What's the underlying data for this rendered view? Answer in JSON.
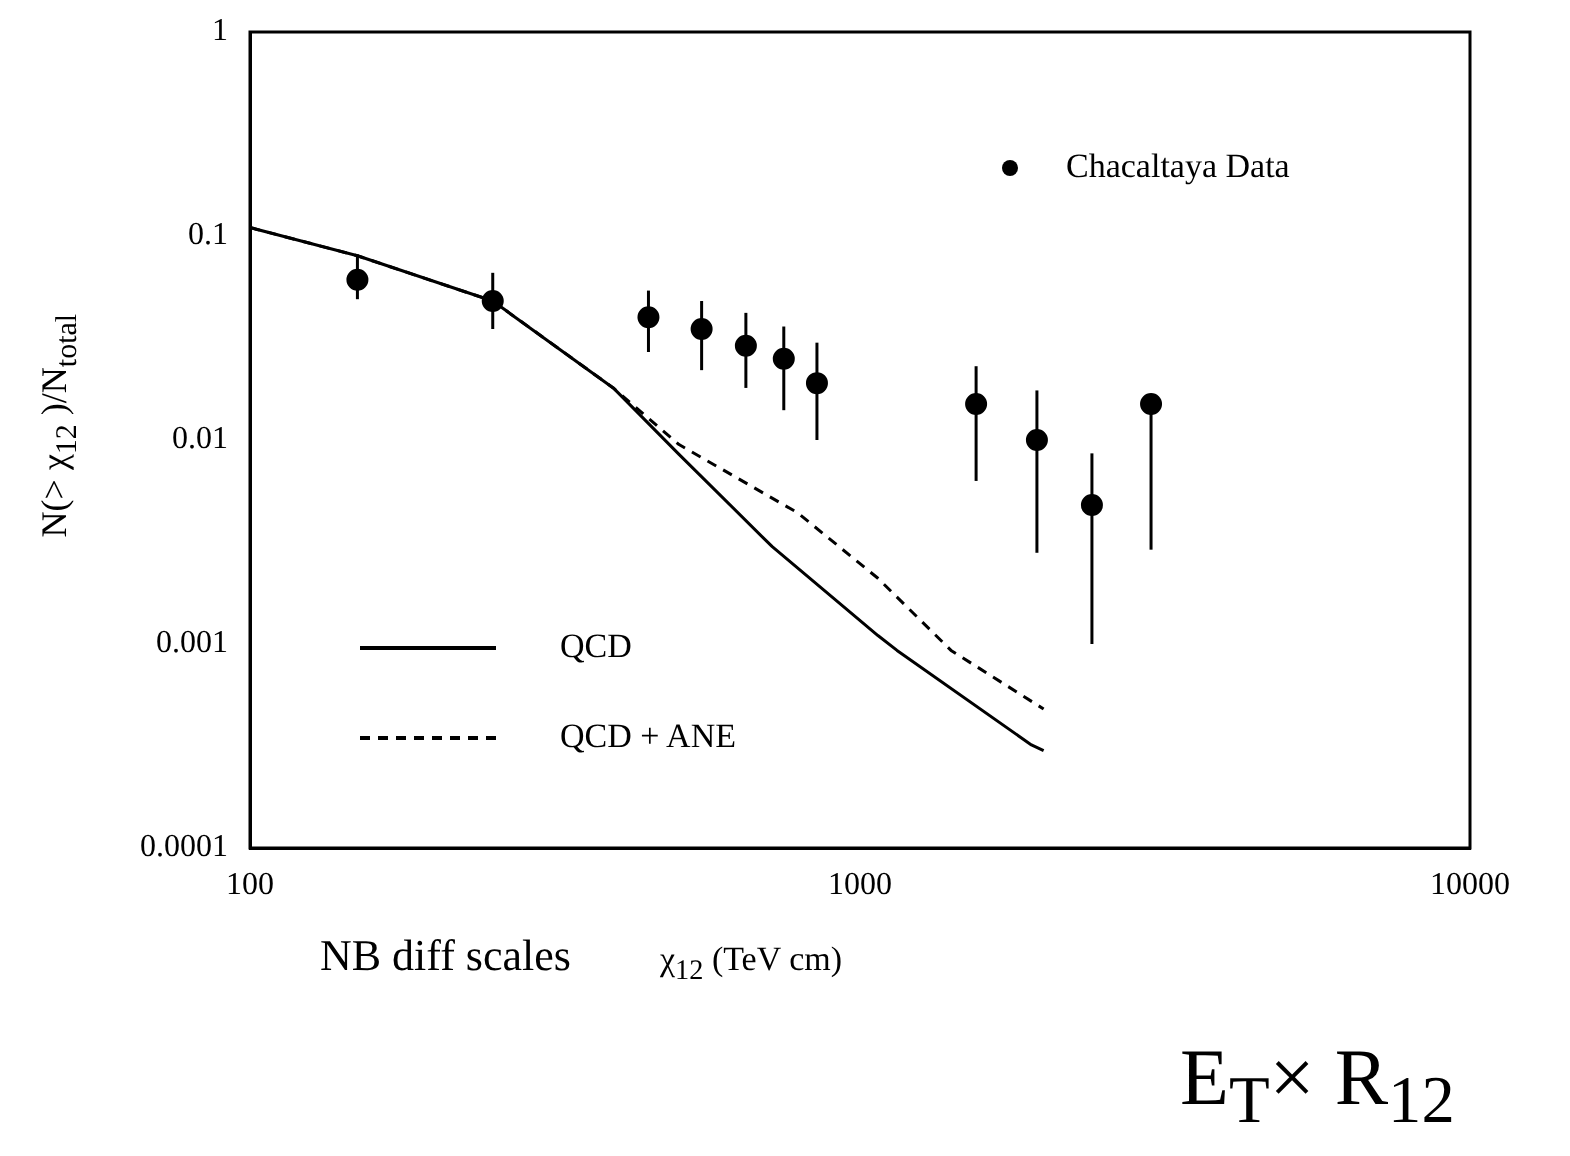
{
  "chart_data": {
    "type": "scatter",
    "xlabel": "χ$_{12}$ (TeV cm)",
    "ylabel": "N(> χ$_{12}$ )/N$_{total}$",
    "log": "xy",
    "xlim": [
      100,
      10000
    ],
    "xticks": [
      100,
      1000,
      10000
    ],
    "ylim": [
      0.0001,
      1
    ],
    "yticks": [
      0.0001,
      0.001,
      0.01,
      0.1,
      1
    ],
    "grid": false,
    "legend": "bottom left",
    "annotations": [
      "NB diff scales",
      "E$_{T}$× R$_{12}$"
    ],
    "series": [
      {
        "name": "Chacaltaya Data",
        "type": "scatter",
        "marker": "circle",
        "color": "#000000",
        "x": [
          150,
          250,
          450,
          550,
          650,
          750,
          850,
          1550,
          1950,
          2400,
          3000
        ],
        "values": [
          0.061,
          0.048,
          0.04,
          0.035,
          0.029,
          0.025,
          0.019,
          0.015,
          0.01,
          0.0048,
          0.015
        ],
        "errors": [
          [
            0.049,
            0.081
          ],
          [
            0.035,
            0.066
          ],
          [
            0.027,
            0.054
          ],
          [
            0.022,
            0.048
          ],
          [
            0.018,
            0.042
          ],
          [
            0.014,
            0.036
          ],
          [
            0.01,
            0.03
          ],
          [
            0.0063,
            0.023
          ],
          [
            0.0028,
            0.0175
          ],
          [
            0.001,
            0.0086
          ],
          [
            0.0029,
            0.015
          ]
        ]
      },
      {
        "name": "QCD",
        "type": "line",
        "line_style": "solid",
        "marker": "none",
        "color": "#000000",
        "x": [
          100,
          150,
          250,
          394,
          505,
          718,
          1070,
          1150,
          1910,
          2000
        ],
        "values": [
          0.11,
          0.08,
          0.048,
          0.018,
          0.0085,
          0.003,
          0.0011,
          0.00093,
          0.00032,
          0.0003
        ]
      },
      {
        "name": "QCD + ANE",
        "type": "line",
        "line_style": "dashed",
        "marker": "none",
        "color": "#000000",
        "x": [
          100,
          150,
          250,
          394,
          505,
          790,
          1070,
          1410,
          2000
        ],
        "values": [
          0.11,
          0.08,
          0.048,
          0.018,
          0.0095,
          0.0044,
          0.0021,
          0.00093,
          0.00048
        ]
      }
    ]
  }
}
